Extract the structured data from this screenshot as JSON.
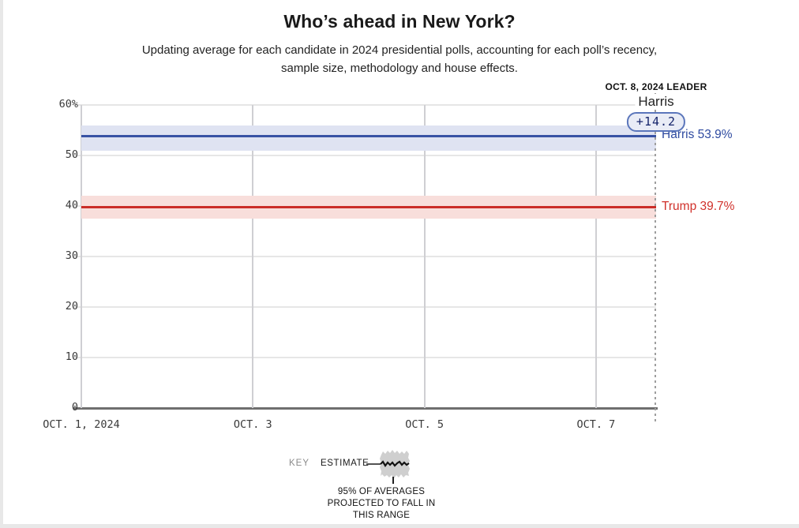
{
  "header": {
    "title": "Who’s ahead in New York?",
    "subtitle_lines": [
      "Updating average for each candidate in 2024 presidential polls, accounting for each poll’s recency,",
      "sample size, methodology and house effects."
    ]
  },
  "leader": {
    "date_label": "OCT. 8, 2024 LEADER",
    "name": "Harris",
    "margin": "+14.2"
  },
  "chart_data": {
    "type": "line",
    "title": "Who’s ahead in New York?",
    "subtitle": "Updating average for each candidate in 2024 presidential polls, accounting for each poll’s recency, sample size, methodology and house effects.",
    "x_axis": "date",
    "x_domain_days": 6.7,
    "x_start_label": "OCT. 1, 2024",
    "x_end_label": "OCT. 8, 2024",
    "xticks_days": [
      0,
      2,
      4,
      6
    ],
    "xtick_labels": [
      "OCT. 1, 2024",
      "OCT. 3",
      "OCT. 5",
      "OCT. 7"
    ],
    "ylim": [
      0,
      60
    ],
    "yticks": [
      0,
      10,
      20,
      30,
      40,
      50,
      60
    ],
    "ytick_labels": [
      "0",
      "10",
      "20",
      "30",
      "40",
      "50",
      "60%"
    ],
    "grid": true,
    "series": [
      {
        "name": "Harris",
        "value": 53.9,
        "trend": "flat from Oct 1 to Oct 8",
        "band_95pct": [
          51.0,
          55.9
        ],
        "color": "#3853a4",
        "band_color": "#dfe3f2",
        "label": "Harris 53.9%",
        "label_color": "#2e4aa0"
      },
      {
        "name": "Trump",
        "value": 39.7,
        "trend": "flat from Oct 1 to Oct 8",
        "band_95pct": [
          37.5,
          42.0
        ],
        "color": "#cb2d28",
        "band_color": "#f8dedb",
        "label": "Trump 39.7%",
        "label_color": "#d0312b"
      }
    ],
    "annotation": {
      "date": "OCT. 8, 2024",
      "leader": "Harris",
      "margin": "+14.2"
    }
  },
  "key": {
    "key_label": "KEY",
    "estimate_label": "ESTIMATE",
    "caption_lines": [
      "95% OF AVERAGES",
      "PROJECTED TO FALL IN",
      "THIS RANGE"
    ]
  },
  "colors": {
    "harris_blue": "#3853a4",
    "trump_red": "#cb2d28",
    "grid_gray": "#e6e6e6",
    "axis_gray": "#6f6f6f",
    "badge_bg": "#e9ecf6",
    "badge_border": "#5b76bb"
  }
}
